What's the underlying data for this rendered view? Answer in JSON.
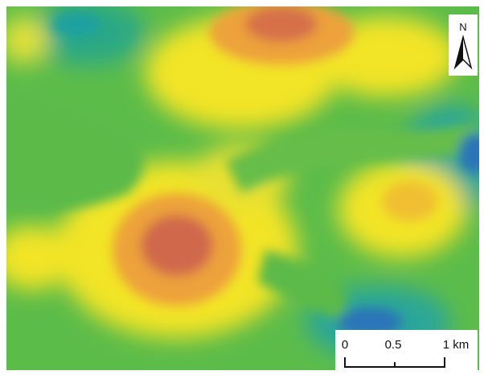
{
  "north_arrow": {
    "label": "N"
  },
  "scale_bar": {
    "labels": [
      "0",
      "0.5",
      "1 km"
    ]
  }
}
